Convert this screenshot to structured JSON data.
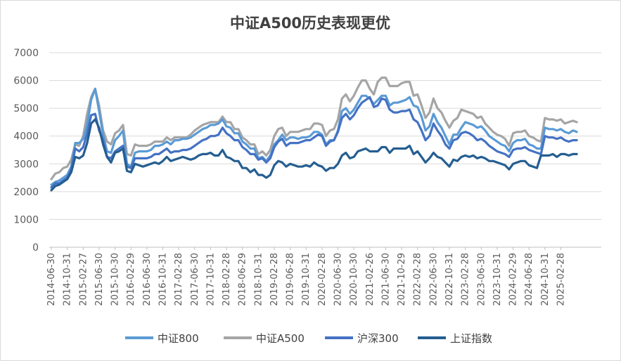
{
  "chart_data": {
    "type": "line",
    "title": "中证A500历史表现更优",
    "xlabel": "",
    "ylabel": "",
    "ylim": [
      0,
      7000
    ],
    "yticks": [
      0,
      1000,
      2000,
      3000,
      4000,
      5000,
      6000,
      7000
    ],
    "grid": true,
    "legend_position": "bottom",
    "x_tick_labels": [
      "2014-06-30",
      "2014-10-31",
      "2015-02-27",
      "2015-06-30",
      "2015-10-30",
      "2016-02-29",
      "2016-06-30",
      "2016-10-31",
      "2017-02-28",
      "2017-06-30",
      "2017-10-31",
      "2018-02-28",
      "2018-06-29",
      "2018-10-31",
      "2019-02-28",
      "2019-06-28",
      "2019-10-31",
      "2020-02-28",
      "2020-06-30",
      "2020-10-30",
      "2021-02-26",
      "2021-06-30",
      "2021-10-29",
      "2022-02-28",
      "2022-06-30",
      "2022-10-31",
      "2023-02-28",
      "2023-06-30",
      "2023-10-31",
      "2024-02-29",
      "2024-06-28",
      "2024-10-31",
      "2025-02-28"
    ],
    "x": [
      "2014-06",
      "2014-07",
      "2014-08",
      "2014-09",
      "2014-10",
      "2014-11",
      "2014-12",
      "2015-01",
      "2015-02",
      "2015-03",
      "2015-04",
      "2015-05",
      "2015-06",
      "2015-07",
      "2015-08",
      "2015-09",
      "2015-10",
      "2015-11",
      "2015-12",
      "2016-01",
      "2016-02",
      "2016-03",
      "2016-04",
      "2016-05",
      "2016-06",
      "2016-07",
      "2016-08",
      "2016-09",
      "2016-10",
      "2016-11",
      "2016-12",
      "2017-01",
      "2017-02",
      "2017-03",
      "2017-04",
      "2017-05",
      "2017-06",
      "2017-07",
      "2017-08",
      "2017-09",
      "2017-10",
      "2017-11",
      "2017-12",
      "2018-01",
      "2018-02",
      "2018-03",
      "2018-04",
      "2018-05",
      "2018-06",
      "2018-07",
      "2018-08",
      "2018-09",
      "2018-10",
      "2018-11",
      "2018-12",
      "2019-01",
      "2019-02",
      "2019-03",
      "2019-04",
      "2019-05",
      "2019-06",
      "2019-07",
      "2019-08",
      "2019-09",
      "2019-10",
      "2019-11",
      "2019-12",
      "2020-01",
      "2020-02",
      "2020-03",
      "2020-04",
      "2020-05",
      "2020-06",
      "2020-07",
      "2020-08",
      "2020-09",
      "2020-10",
      "2020-11",
      "2020-12",
      "2021-01",
      "2021-02",
      "2021-03",
      "2021-04",
      "2021-05",
      "2021-06",
      "2021-07",
      "2021-08",
      "2021-09",
      "2021-10",
      "2021-11",
      "2021-12",
      "2022-01",
      "2022-02",
      "2022-03",
      "2022-04",
      "2022-05",
      "2022-06",
      "2022-07",
      "2022-08",
      "2022-09",
      "2022-10",
      "2022-11",
      "2022-12",
      "2023-01",
      "2023-02",
      "2023-03",
      "2023-04",
      "2023-05",
      "2023-06",
      "2023-07",
      "2023-08",
      "2023-09",
      "2023-10",
      "2023-11",
      "2023-12",
      "2024-01",
      "2024-02",
      "2024-03",
      "2024-04",
      "2024-05",
      "2024-06",
      "2024-07",
      "2024-08",
      "2024-09",
      "2024-10",
      "2024-11",
      "2024-12",
      "2025-01",
      "2025-02",
      "2025-03",
      "2025-04",
      "2025-05",
      "2025-06"
    ],
    "series": [
      {
        "name": "中证800",
        "color": "#5b9bd5",
        "values": [
          2250,
          2350,
          2400,
          2500,
          2600,
          2900,
          3750,
          3750,
          3900,
          4400,
          5300,
          5700,
          4900,
          4050,
          3450,
          3400,
          3850,
          4000,
          4200,
          3000,
          2900,
          3400,
          3450,
          3450,
          3450,
          3500,
          3650,
          3650,
          3700,
          3800,
          3700,
          3850,
          3850,
          3900,
          3900,
          3950,
          4050,
          4150,
          4250,
          4300,
          4400,
          4400,
          4450,
          4600,
          4350,
          4300,
          4100,
          4100,
          3800,
          3700,
          3550,
          3550,
          3200,
          3250,
          3100,
          3300,
          3700,
          3850,
          4050,
          3850,
          3950,
          3950,
          3900,
          3950,
          3950,
          4000,
          4150,
          4150,
          4050,
          3700,
          3850,
          3850,
          4200,
          4900,
          5000,
          4800,
          4950,
          5200,
          5450,
          5450,
          5350,
          5150,
          5300,
          5450,
          5450,
          5100,
          5200,
          5200,
          5250,
          5300,
          5400,
          5100,
          5050,
          4700,
          4200,
          4350,
          4800,
          4500,
          4300,
          4000,
          3700,
          4050,
          4050,
          4300,
          4500,
          4450,
          4400,
          4300,
          4350,
          4200,
          4000,
          3900,
          3800,
          3700,
          3650,
          3450,
          3750,
          3850,
          3850,
          3900,
          3700,
          3650,
          3550,
          3550,
          4300,
          4250,
          4250,
          4200,
          4250,
          4150,
          4100,
          4200,
          4150
        ]
      },
      {
        "name": "中证A500",
        "color": "#a5a5a5",
        "values": [
          2450,
          2650,
          2700,
          2850,
          2900,
          3150,
          3700,
          3650,
          4000,
          4800,
          5400,
          5700,
          5100,
          4200,
          3800,
          3700,
          4100,
          4200,
          4400,
          3350,
          3300,
          3700,
          3650,
          3650,
          3650,
          3700,
          3800,
          3800,
          3800,
          3950,
          3850,
          3950,
          3950,
          3950,
          3950,
          4050,
          4200,
          4300,
          4400,
          4450,
          4500,
          4500,
          4500,
          4700,
          4500,
          4500,
          4250,
          4250,
          3950,
          3850,
          3700,
          3700,
          3350,
          3450,
          3300,
          3500,
          4000,
          4250,
          4300,
          4000,
          4150,
          4150,
          4150,
          4200,
          4250,
          4250,
          4450,
          4450,
          4400,
          4000,
          4200,
          4250,
          4600,
          5350,
          5500,
          5250,
          5450,
          5750,
          6000,
          6000,
          5700,
          5500,
          5950,
          6100,
          6100,
          5800,
          5800,
          5800,
          5900,
          5950,
          5950,
          5450,
          5500,
          5100,
          4650,
          4850,
          5350,
          5000,
          4850,
          4550,
          4300,
          4550,
          4650,
          4950,
          4900,
          4850,
          4800,
          4650,
          4700,
          4450,
          4300,
          4150,
          4050,
          4000,
          3900,
          3650,
          4100,
          4150,
          4150,
          4200,
          4000,
          3950,
          3850,
          3800,
          4650,
          4600,
          4600,
          4550,
          4600,
          4450,
          4500,
          4550,
          4500
        ]
      },
      {
        "name": "沪深300",
        "color": "#4472c4",
        "values": [
          2150,
          2300,
          2300,
          2400,
          2500,
          2800,
          3550,
          3450,
          3600,
          4100,
          4750,
          4800,
          4200,
          3850,
          3250,
          3200,
          3450,
          3550,
          3650,
          2900,
          2850,
          3200,
          3200,
          3200,
          3200,
          3250,
          3350,
          3350,
          3450,
          3550,
          3400,
          3450,
          3450,
          3500,
          3500,
          3550,
          3650,
          3750,
          3850,
          3900,
          4000,
          4000,
          4050,
          4300,
          4100,
          4000,
          3850,
          3850,
          3600,
          3500,
          3350,
          3350,
          3150,
          3200,
          3050,
          3200,
          3600,
          3800,
          3900,
          3650,
          3750,
          3750,
          3750,
          3800,
          3850,
          3850,
          3950,
          4050,
          4000,
          3650,
          3800,
          3850,
          4150,
          4650,
          4800,
          4600,
          4750,
          5000,
          5200,
          5300,
          5400,
          5050,
          5100,
          5350,
          5300,
          4950,
          4850,
          4850,
          4900,
          4900,
          4950,
          4600,
          4500,
          4200,
          3850,
          4000,
          4450,
          4200,
          4000,
          3700,
          3550,
          3850,
          3900,
          4100,
          4150,
          4100,
          4000,
          3850,
          3900,
          3800,
          3650,
          3550,
          3450,
          3400,
          3350,
          3250,
          3500,
          3550,
          3550,
          3600,
          3500,
          3450,
          3400,
          3350,
          4000,
          3950,
          3950,
          3900,
          3950,
          3850,
          3800,
          3850,
          3850
        ]
      },
      {
        "name": "上证指数",
        "color": "#255e91",
        "values": [
          2050,
          2200,
          2250,
          2350,
          2450,
          2700,
          3250,
          3200,
          3300,
          3750,
          4450,
          4600,
          4300,
          3700,
          3250,
          3050,
          3400,
          3450,
          3550,
          2750,
          2700,
          3000,
          2950,
          2900,
          2950,
          3000,
          3050,
          3000,
          3100,
          3250,
          3100,
          3150,
          3200,
          3250,
          3200,
          3150,
          3200,
          3300,
          3350,
          3350,
          3400,
          3300,
          3300,
          3500,
          3250,
          3200,
          3100,
          3100,
          2850,
          2850,
          2700,
          2800,
          2600,
          2600,
          2500,
          2600,
          2950,
          3100,
          3050,
          2900,
          3000,
          2950,
          2900,
          2900,
          2950,
          2900,
          3050,
          2950,
          2900,
          2750,
          2850,
          2850,
          3000,
          3300,
          3400,
          3200,
          3250,
          3450,
          3500,
          3550,
          3450,
          3450,
          3450,
          3600,
          3600,
          3400,
          3550,
          3550,
          3550,
          3550,
          3650,
          3350,
          3450,
          3250,
          3050,
          3200,
          3400,
          3250,
          3200,
          3050,
          2900,
          3150,
          3100,
          3250,
          3300,
          3250,
          3300,
          3200,
          3250,
          3200,
          3100,
          3100,
          3050,
          3000,
          2950,
          2800,
          3000,
          3050,
          3100,
          3100,
          2950,
          2900,
          2850,
          3300,
          3300,
          3300,
          3350,
          3250,
          3350,
          3350,
          3300,
          3350,
          3350
        ]
      }
    ]
  }
}
